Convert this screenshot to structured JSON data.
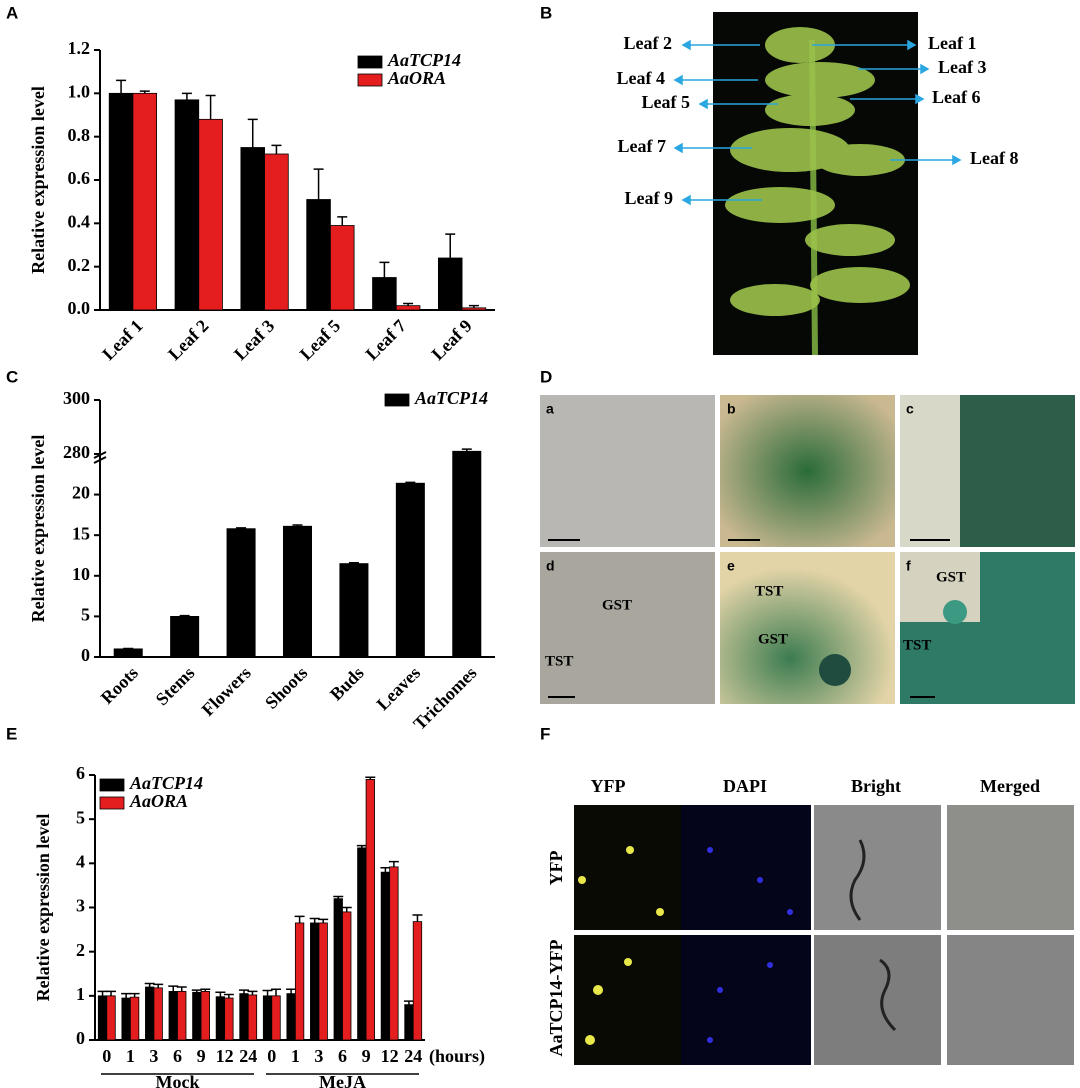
{
  "panel_labels": [
    "A",
    "B",
    "C",
    "D",
    "E",
    "F"
  ],
  "chart_data": [
    {
      "type": "bar",
      "y_label": "Relative expression level",
      "categories": [
        "Leaf 1",
        "Leaf 2",
        "Leaf 3",
        "Leaf 5",
        "Leaf 7",
        "Leaf 9"
      ],
      "series": [
        {
          "name": "AaTCP14",
          "color": "#000000",
          "values": [
            1.0,
            0.97,
            0.75,
            0.51,
            0.15,
            0.24
          ],
          "errors": [
            0.06,
            0.03,
            0.13,
            0.14,
            0.07,
            0.11
          ]
        },
        {
          "name": "AaORA",
          "color": "#e41e1e",
          "values": [
            1.0,
            0.88,
            0.72,
            0.39,
            0.02,
            0.01
          ],
          "errors": [
            0.01,
            0.11,
            0.04,
            0.04,
            0.01,
            0.01
          ]
        }
      ],
      "ylim": [
        0,
        1.2
      ],
      "yticks": [
        {
          "value": 0,
          "label": "0.0"
        },
        0.2,
        0.4,
        0.6,
        0.8,
        {
          "value": 1,
          "label": "1.0"
        },
        1.2
      ]
    },
    {
      "type": "bar",
      "y_label": "Relative expression level",
      "categories": [
        "Roots",
        "Stems",
        "Flowers",
        "Shoots",
        "Buds",
        "Leaves",
        "Trichomes"
      ],
      "series": [
        {
          "name": "AaTCP14",
          "color": "#000000",
          "values": [
            1.0,
            5.0,
            15.8,
            16.1,
            11.5,
            21.4,
            281
          ],
          "errors": [
            0.05,
            0.1,
            0.1,
            0.15,
            0.1,
            0.1,
            0.8
          ]
        }
      ],
      "ylim": [
        0,
        300
      ],
      "ybreak": [
        25,
        280
      ],
      "yticks": [
        0,
        5,
        10,
        15,
        20,
        280,
        300
      ]
    },
    {
      "type": "bar",
      "y_label": "Relative expression level",
      "x_unit": "(hours)",
      "group_labels": [
        "Mock",
        "MeJA"
      ],
      "categories": [
        "0",
        "1",
        "3",
        "6",
        "9",
        "12",
        "24",
        "0",
        "1",
        "3",
        "6",
        "9",
        "12",
        "24"
      ],
      "series": [
        {
          "name": "AaTCP14",
          "color": "#000000",
          "values": [
            1.0,
            0.95,
            1.2,
            1.1,
            1.08,
            0.98,
            1.05,
            1.0,
            1.05,
            2.65,
            3.2,
            4.35,
            3.8,
            0.8
          ],
          "errors": [
            0.1,
            0.1,
            0.08,
            0.12,
            0.05,
            0.1,
            0.08,
            0.12,
            0.1,
            0.1,
            0.05,
            0.05,
            0.1,
            0.08
          ]
        },
        {
          "name": "AaORA",
          "color": "#e41e1e",
          "values": [
            1.0,
            0.97,
            1.18,
            1.1,
            1.1,
            0.95,
            1.02,
            1.0,
            2.65,
            2.65,
            2.9,
            5.9,
            3.92,
            2.68
          ],
          "errors": [
            0.1,
            0.08,
            0.08,
            0.1,
            0.05,
            0.08,
            0.08,
            0.15,
            0.15,
            0.08,
            0.1,
            0.05,
            0.12,
            0.15
          ]
        }
      ],
      "ylim": [
        0,
        6
      ],
      "yticks": [
        0,
        1,
        2,
        3,
        4,
        5,
        6
      ]
    }
  ],
  "plant_panel": {
    "leaves": [
      "Leaf 1",
      "Leaf 2",
      "Leaf 3",
      "Leaf 4",
      "Leaf 5",
      "Leaf 6",
      "Leaf 7",
      "Leaf 8",
      "Leaf 9"
    ]
  },
  "staining_panel": {
    "tiles": [
      "a",
      "b",
      "c",
      "d",
      "e",
      "f"
    ],
    "markers": [
      "GST",
      "TST",
      "TST",
      "GST",
      "GST",
      "TST"
    ]
  },
  "localization_panel": {
    "columns": [
      "YFP",
      "DAPI",
      "Bright",
      "Merged"
    ],
    "rows": [
      "YFP",
      "AaTCP14-YFP"
    ]
  }
}
